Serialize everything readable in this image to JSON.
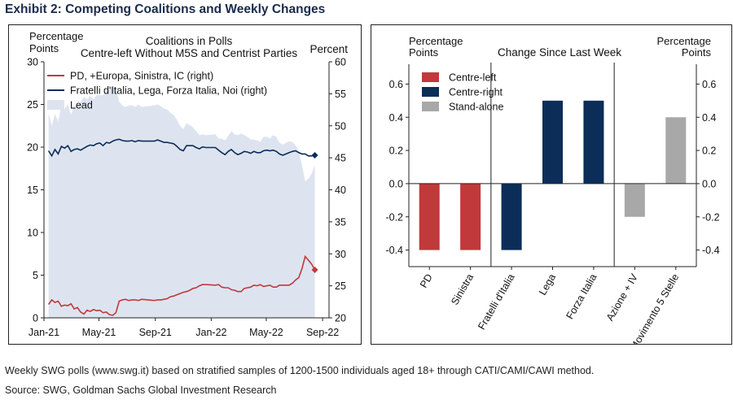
{
  "exhibit_title": "Exhibit 2: Competing Coalitions and Weekly Changes",
  "footnote": "Weekly SWG polls (www.swg.it) based on stratified samples of 1200-1500 individuals aged 18+ through CATI/CAMI/CAWI method.",
  "source": "Source: SWG, Goldman Sachs Global Investment Research",
  "colors": {
    "centre_left": "#c0393b",
    "centre_right": "#0b2d57",
    "stand_alone": "#a8a8a8",
    "lead_fill": "#dde4f0",
    "accent_title": "#1a2b4c"
  },
  "chart_data": [
    {
      "type": "line",
      "title": "Coalitions in Polls",
      "subtitle": "Centre-left Without M5S and Centrist Parties",
      "ylabel_left": "Percentage Points",
      "ylabel_right": "Percent",
      "ylim_left": [
        0,
        30
      ],
      "yticks_left": [
        "0",
        "5",
        "10",
        "15",
        "20",
        "25",
        "30"
      ],
      "ylim_right": [
        20,
        60
      ],
      "yticks_right": [
        "20",
        "25",
        "30",
        "35",
        "40",
        "45",
        "50",
        "55",
        "60"
      ],
      "xlim": [
        "2021-01-01",
        "2022-09-15"
      ],
      "x_ticks": [
        "Jan-21",
        "May-21",
        "Sep-21",
        "Jan-22",
        "May-22",
        "Sep-22"
      ],
      "grid": false,
      "legend_position": "top-left",
      "series": [
        {
          "name": "PD, +Europa, Sinistra, IC (right)",
          "axis": "right",
          "color": "#c0393b",
          "x": [
            "2021-01-11",
            "2021-01-18",
            "2021-01-25",
            "2021-02-01",
            "2021-02-08",
            "2021-02-15",
            "2021-02-22",
            "2021-03-01",
            "2021-03-08",
            "2021-03-15",
            "2021-03-22",
            "2021-03-29",
            "2021-04-05",
            "2021-04-12",
            "2021-04-19",
            "2021-04-26",
            "2021-05-03",
            "2021-05-10",
            "2021-05-17",
            "2021-05-24",
            "2021-05-31",
            "2021-06-07",
            "2021-06-14",
            "2021-06-21",
            "2021-06-28",
            "2021-07-05",
            "2021-07-12",
            "2021-07-19",
            "2021-07-26",
            "2021-08-02",
            "2021-08-30",
            "2021-09-06",
            "2021-09-13",
            "2021-09-20",
            "2021-09-27",
            "2021-10-04",
            "2021-10-11",
            "2021-10-18",
            "2021-10-25",
            "2021-11-01",
            "2021-11-08",
            "2021-11-15",
            "2021-11-22",
            "2021-11-29",
            "2021-12-06",
            "2021-12-13",
            "2021-12-20",
            "2022-01-10",
            "2022-01-17",
            "2022-01-24",
            "2022-01-31",
            "2022-02-07",
            "2022-02-14",
            "2022-02-21",
            "2022-02-28",
            "2022-03-07",
            "2022-03-14",
            "2022-03-21",
            "2022-03-28",
            "2022-04-04",
            "2022-04-11",
            "2022-04-18",
            "2022-04-25",
            "2022-05-02",
            "2022-05-09",
            "2022-05-16",
            "2022-05-23",
            "2022-05-30",
            "2022-06-06",
            "2022-06-13",
            "2022-06-20",
            "2022-06-27",
            "2022-07-04",
            "2022-07-11",
            "2022-07-18",
            "2022-07-25",
            "2022-08-01",
            "2022-08-08",
            "2022-08-15"
          ],
          "values": [
            22.1,
            22.8,
            22.4,
            22.6,
            21.8,
            22.0,
            21.9,
            22.2,
            21.4,
            21.6,
            20.9,
            20.6,
            21.2,
            21.0,
            21.3,
            21.1,
            21.2,
            20.8,
            20.9,
            20.5,
            20.4,
            20.8,
            22.6,
            22.8,
            22.9,
            22.7,
            22.8,
            22.8,
            22.7,
            22.9,
            22.7,
            22.8,
            22.8,
            22.9,
            23.0,
            23.3,
            23.4,
            23.6,
            23.8,
            24.0,
            24.1,
            24.3,
            24.6,
            24.7,
            25.0,
            25.2,
            25.2,
            25.1,
            25.2,
            24.8,
            24.7,
            24.7,
            24.4,
            24.3,
            24.1,
            24.1,
            24.6,
            24.7,
            24.8,
            25.1,
            25.0,
            25.2,
            24.9,
            25.0,
            25.1,
            24.8,
            24.8,
            25.1,
            25.1,
            25.1,
            25.1,
            25.4,
            25.9,
            26.3,
            27.7,
            29.6,
            29.0,
            28.4,
            27.5
          ]
        },
        {
          "name": "Fratelli d'Italia, Lega, Forza Italia, Noi (right)",
          "axis": "right",
          "color": "#0b2d57",
          "x": [
            "2021-01-11",
            "2021-01-18",
            "2021-01-25",
            "2021-02-01",
            "2021-02-08",
            "2021-02-15",
            "2021-02-22",
            "2021-03-01",
            "2021-03-08",
            "2021-03-15",
            "2021-03-22",
            "2021-03-29",
            "2021-04-05",
            "2021-04-12",
            "2021-04-19",
            "2021-04-26",
            "2021-05-03",
            "2021-05-10",
            "2021-05-17",
            "2021-05-24",
            "2021-05-31",
            "2021-06-07",
            "2021-06-14",
            "2021-06-21",
            "2021-06-28",
            "2021-07-05",
            "2021-07-12",
            "2021-07-19",
            "2021-07-26",
            "2021-08-02",
            "2021-08-30",
            "2021-09-06",
            "2021-09-13",
            "2021-09-20",
            "2021-09-27",
            "2021-10-04",
            "2021-10-11",
            "2021-10-18",
            "2021-10-25",
            "2021-11-01",
            "2021-11-08",
            "2021-11-15",
            "2021-11-22",
            "2021-11-29",
            "2021-12-06",
            "2021-12-13",
            "2021-12-20",
            "2022-01-10",
            "2022-01-17",
            "2022-01-24",
            "2022-01-31",
            "2022-02-07",
            "2022-02-14",
            "2022-02-21",
            "2022-02-28",
            "2022-03-07",
            "2022-03-14",
            "2022-03-21",
            "2022-03-28",
            "2022-04-04",
            "2022-04-11",
            "2022-04-18",
            "2022-04-25",
            "2022-05-02",
            "2022-05-09",
            "2022-05-16",
            "2022-05-23",
            "2022-05-30",
            "2022-06-06",
            "2022-06-13",
            "2022-06-20",
            "2022-06-27",
            "2022-07-04",
            "2022-07-11",
            "2022-07-18",
            "2022-07-25",
            "2022-08-01",
            "2022-08-08",
            "2022-08-15"
          ],
          "values": [
            46.1,
            45.3,
            46.3,
            45.6,
            46.8,
            46.5,
            46.9,
            46.0,
            46.3,
            46.4,
            46.2,
            46.5,
            46.8,
            47.0,
            46.9,
            47.2,
            47.3,
            46.9,
            47.4,
            47.3,
            47.6,
            47.8,
            47.9,
            47.7,
            47.6,
            47.6,
            47.7,
            47.5,
            47.7,
            47.6,
            47.6,
            47.8,
            47.6,
            47.4,
            47.4,
            47.3,
            47.2,
            46.8,
            46.3,
            46.1,
            46.9,
            46.9,
            46.9,
            46.6,
            46.4,
            46.7,
            46.6,
            46.6,
            46.2,
            45.8,
            45.5,
            46.0,
            46.3,
            45.8,
            45.5,
            45.7,
            46.0,
            45.9,
            45.7,
            46.0,
            45.8,
            45.8,
            46.1,
            46.2,
            46.1,
            46.2,
            46.0,
            45.6,
            45.4,
            45.6,
            45.8,
            46.0,
            46.1,
            45.8,
            45.6,
            45.6,
            45.3,
            45.3,
            45.4
          ]
        },
        {
          "name": "Lead",
          "axis": "left",
          "color": "#dde4f0",
          "x": [
            "2021-01-11",
            "2021-01-18",
            "2021-01-25",
            "2021-02-01",
            "2021-02-08",
            "2021-02-15",
            "2021-02-22",
            "2021-03-01",
            "2021-03-08",
            "2021-03-15",
            "2021-03-22",
            "2021-03-29",
            "2021-04-05",
            "2021-04-12",
            "2021-04-19",
            "2021-04-26",
            "2021-05-03",
            "2021-05-10",
            "2021-05-17",
            "2021-05-24",
            "2021-05-31",
            "2021-06-07",
            "2021-06-14",
            "2021-06-21",
            "2021-06-28",
            "2021-07-05",
            "2021-07-12",
            "2021-07-19",
            "2021-07-26",
            "2021-08-02",
            "2021-08-30",
            "2021-09-06",
            "2021-09-13",
            "2021-09-20",
            "2021-09-27",
            "2021-10-04",
            "2021-10-11",
            "2021-10-18",
            "2021-10-25",
            "2021-11-01",
            "2021-11-08",
            "2021-11-15",
            "2021-11-22",
            "2021-11-29",
            "2021-12-06",
            "2021-12-13",
            "2021-12-20",
            "2022-01-10",
            "2022-01-17",
            "2022-01-24",
            "2022-01-31",
            "2022-02-07",
            "2022-02-14",
            "2022-02-21",
            "2022-02-28",
            "2022-03-07",
            "2022-03-14",
            "2022-03-21",
            "2022-03-28",
            "2022-04-04",
            "2022-04-11",
            "2022-04-18",
            "2022-04-25",
            "2022-05-02",
            "2022-05-09",
            "2022-05-16",
            "2022-05-23",
            "2022-05-30",
            "2022-06-06",
            "2022-06-13",
            "2022-06-20",
            "2022-06-27",
            "2022-07-04",
            "2022-07-11",
            "2022-07-18",
            "2022-07-25",
            "2022-08-01",
            "2022-08-08",
            "2022-08-15"
          ],
          "values": [
            24.0,
            22.5,
            23.9,
            23.0,
            25.0,
            24.5,
            25.0,
            23.8,
            24.9,
            24.8,
            25.3,
            25.9,
            25.6,
            26.0,
            25.6,
            26.1,
            26.1,
            26.1,
            26.5,
            26.8,
            27.2,
            27.0,
            25.3,
            24.9,
            24.7,
            24.9,
            24.9,
            24.7,
            25.0,
            24.7,
            24.9,
            25.0,
            24.8,
            24.5,
            24.4,
            24.0,
            23.8,
            23.2,
            22.5,
            22.1,
            22.8,
            22.6,
            22.3,
            21.9,
            21.4,
            21.5,
            21.4,
            21.5,
            21.0,
            21.0,
            20.8,
            21.3,
            21.9,
            21.5,
            21.4,
            21.6,
            21.4,
            21.2,
            20.9,
            20.9,
            20.8,
            20.6,
            21.2,
            21.2,
            21.0,
            21.4,
            21.2,
            20.5,
            20.3,
            20.5,
            20.7,
            20.6,
            20.2,
            19.5,
            17.9,
            16.0,
            16.3,
            16.9,
            17.9
          ]
        }
      ]
    },
    {
      "type": "bar",
      "title": "Change Since Last Week",
      "ylabel_left": "Percentage Points",
      "ylabel_right": "Percentage Points",
      "ylim": [
        -0.5,
        0.7
      ],
      "yticks": [
        "-0.4",
        "-0.2",
        "0.0",
        "0.2",
        "0.4",
        "0.6"
      ],
      "categories": [
        "PD",
        "Sinistra",
        "Fratelli d'Italia",
        "Lega",
        "Forza Italia",
        "Azione + IV",
        "Movimento 5 Stelle"
      ],
      "values": [
        -0.4,
        -0.4,
        -0.4,
        0.5,
        0.5,
        -0.2,
        0.4
      ],
      "groups": [
        "Centre-left",
        "Centre-left",
        "Centre-right",
        "Centre-right",
        "Centre-right",
        "Stand-alone",
        "Stand-alone"
      ],
      "legend": [
        {
          "name": "Centre-left",
          "color": "#c0393b"
        },
        {
          "name": "Centre-right",
          "color": "#0b2d57"
        },
        {
          "name": "Stand-alone",
          "color": "#a8a8a8"
        }
      ],
      "legend_position": "top-left",
      "grid": false
    }
  ]
}
